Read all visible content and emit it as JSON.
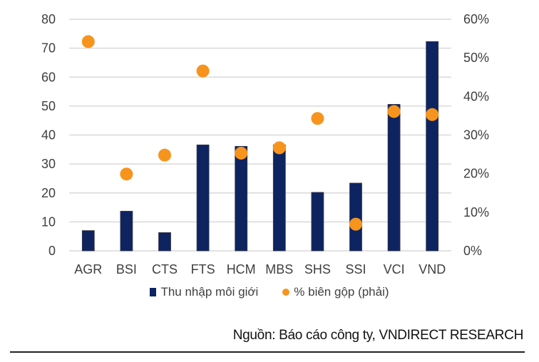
{
  "chart_data": {
    "type": "bar",
    "categories": [
      "AGR",
      "BSI",
      "CTS",
      "FTS",
      "HCM",
      "MBS",
      "SHS",
      "SSI",
      "VCI",
      "VND"
    ],
    "series": [
      {
        "name": "Thu nhập môi giới",
        "type": "bar",
        "axis": "left",
        "color": "#0d2461",
        "values": [
          7.0,
          13.7,
          6.3,
          36.6,
          36.1,
          36.6,
          20.2,
          23.4,
          50.6,
          72.3
        ]
      },
      {
        "name": "% biên gộp (phải)",
        "type": "scatter",
        "axis": "right",
        "color": "#f7941d",
        "values": [
          54.2,
          19.9,
          24.8,
          46.6,
          25.3,
          26.7,
          34.3,
          6.9,
          36.1,
          35.3
        ]
      }
    ],
    "ylim": [
      0,
      80
    ],
    "y_ticks": [
      "0",
      "10",
      "20",
      "30",
      "40",
      "50",
      "60",
      "70",
      "80"
    ],
    "y2lim": [
      0,
      60
    ],
    "y2_ticks": [
      "0%",
      "10%",
      "20%",
      "30%",
      "40%",
      "50%",
      "60%"
    ],
    "grid": true,
    "legend": "bottom"
  },
  "source": "Nguồn: Báo cáo công ty, VNDIRECT RESEARCH"
}
